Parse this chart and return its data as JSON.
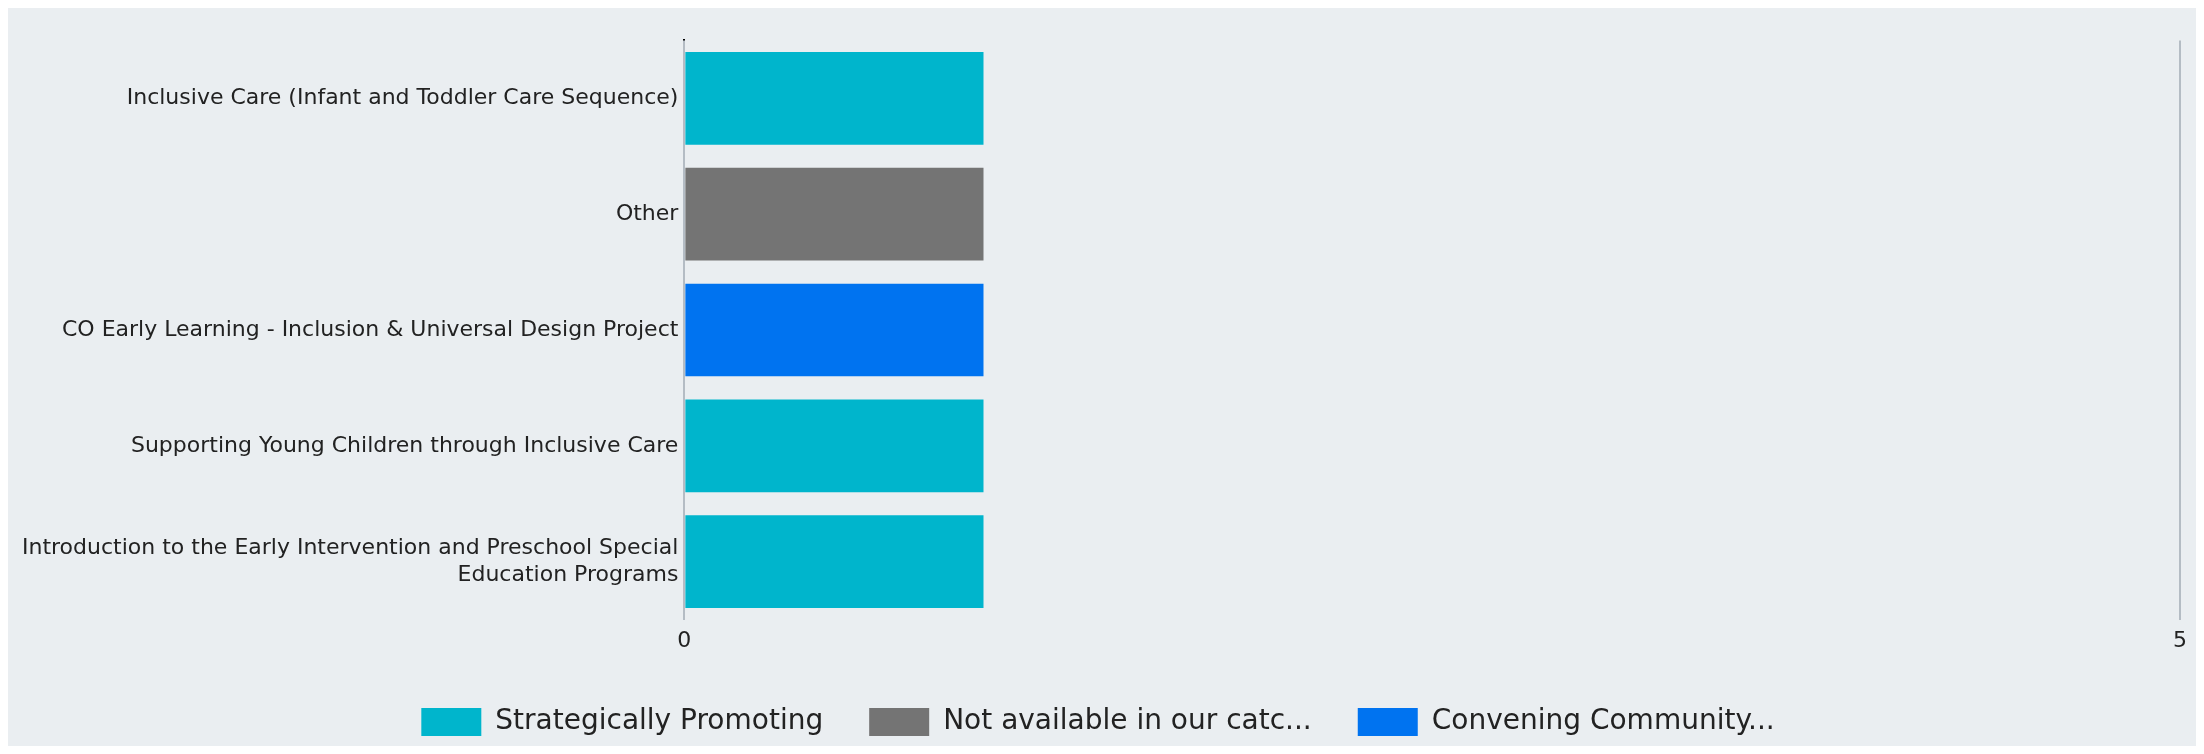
{
  "chart_data": {
    "type": "bar",
    "orientation": "horizontal",
    "stacked": true,
    "categories": [
      "Inclusive Care (Infant and Toddler Care Sequence)",
      "Other",
      "CO Early Learning - Inclusion & Universal Design Project",
      "Supporting Young Children through Inclusive Care",
      "Introduction to the Early Intervention and Preschool Special Education Programs"
    ],
    "series": [
      {
        "name": "Strategically Promoting",
        "color": "#00b5cc",
        "values": [
          1,
          null,
          null,
          1,
          1
        ]
      },
      {
        "name": "Not available in our catc...",
        "color": "#747474",
        "values": [
          null,
          1,
          null,
          null,
          null
        ]
      },
      {
        "name": "Convening Community...",
        "color": "#0073f0",
        "values": [
          null,
          null,
          1,
          null,
          null
        ]
      }
    ],
    "xlim": [
      0,
      5
    ],
    "xticks": [
      0,
      5
    ],
    "grid": "x",
    "legend": "bottom"
  }
}
